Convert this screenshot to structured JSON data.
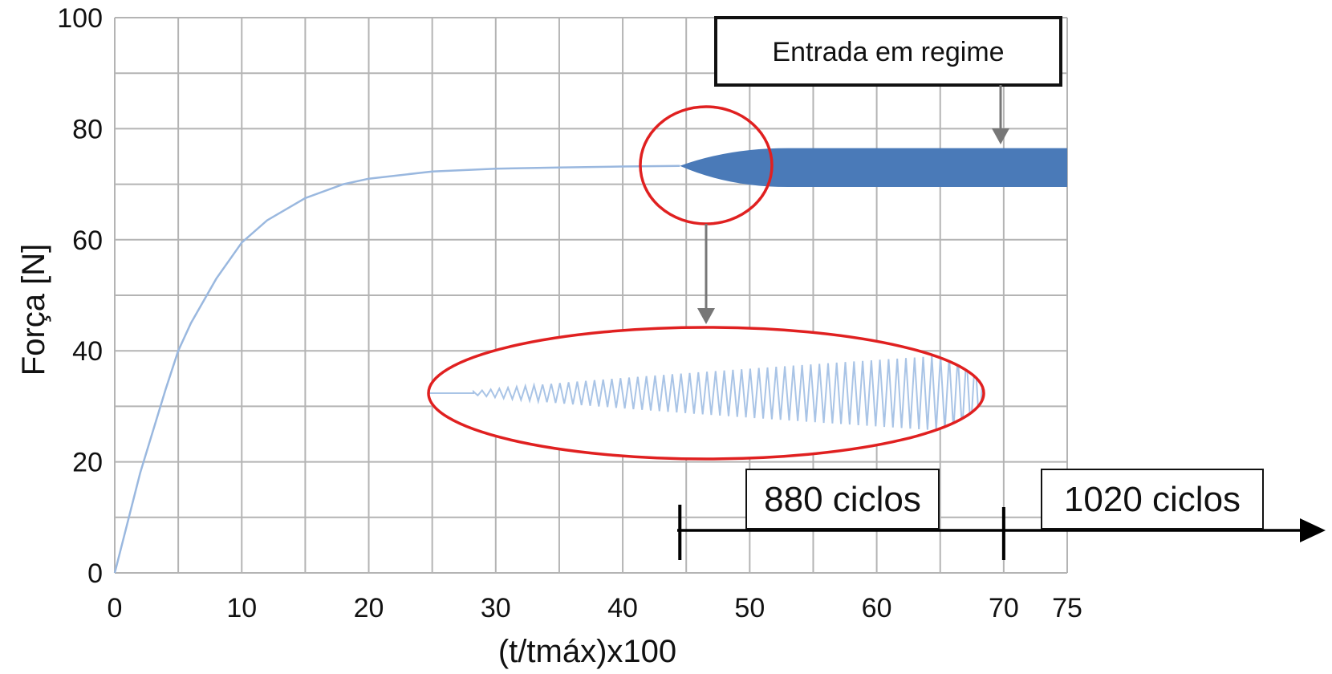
{
  "chart_data": {
    "type": "line",
    "title": "",
    "xlabel": "(t/tmáx)x100",
    "ylabel": "Força [N]",
    "xlim": [
      0,
      75
    ],
    "ylim": [
      0,
      100
    ],
    "grid": true,
    "x_ticks": [
      "0",
      "10",
      "20",
      "30",
      "40",
      "50",
      "60",
      "70",
      "75"
    ],
    "y_ticks": [
      "0",
      "20",
      "40",
      "60",
      "80",
      "100"
    ],
    "colors": {
      "curve": "#9ab8df",
      "band": "#4a7ab8",
      "inset_wave": "#a9c4e6",
      "highlight_ring": "#e02020",
      "grid": "#b4b4b4",
      "arrow": "#777777",
      "timeline": "#000000"
    },
    "series": [
      {
        "x": [
          0,
          2,
          4,
          5,
          6,
          8,
          10,
          12,
          15,
          18,
          20,
          25,
          30,
          35,
          40,
          44.5
        ],
        "y": [
          0,
          18,
          33,
          40,
          45,
          53,
          59.5,
          63.5,
          67.5,
          70,
          71,
          72.3,
          72.8,
          73,
          73.2,
          73.3
        ]
      }
    ],
    "oscillation_band": {
      "x_start": 44.5,
      "x_full": 53,
      "x_end": 75,
      "center": 73.3,
      "upper": 76.5,
      "lower": 69.5
    },
    "annotations": {
      "steady_state": "Entrada em regime",
      "cycles_first": "880 ciclos",
      "cycles_second": "1020 ciclos"
    },
    "timeline_markers_x": [
      44.5,
      70
    ]
  }
}
